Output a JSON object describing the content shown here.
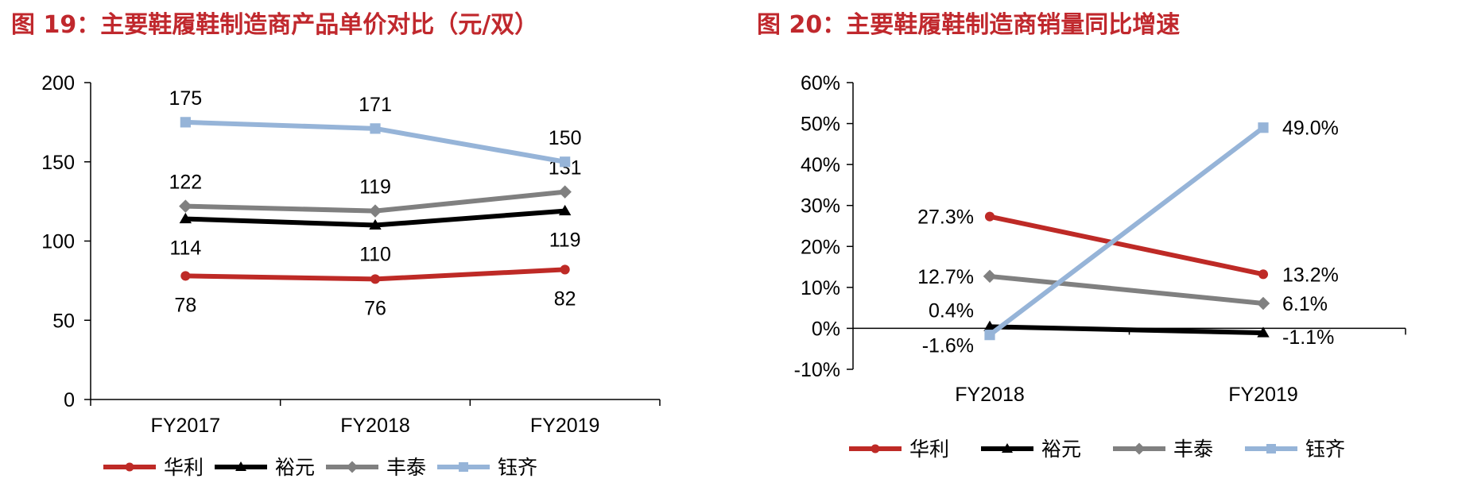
{
  "left_panel": {
    "title": "图 19：主要鞋履鞋制造商产品单价对比（元/双）"
  },
  "right_panel": {
    "title": "图 20：主要鞋履鞋制造商销量同比增速"
  },
  "chart_data": [
    {
      "type": "line",
      "categories": [
        "FY2017",
        "FY2018",
        "FY2019"
      ],
      "ylim": [
        0,
        200
      ],
      "yticks": [
        0,
        50,
        100,
        150,
        200
      ],
      "ytick_labels": [
        "0",
        "50",
        "100",
        "150",
        "200"
      ],
      "legend_position": "bottom",
      "grid": false,
      "series": [
        {
          "name": "华利",
          "values": [
            78,
            76,
            82
          ],
          "labels": [
            "78",
            "76",
            "82"
          ],
          "color": "#be2a26",
          "marker": "circle",
          "label_side": "below"
        },
        {
          "name": "裕元",
          "values": [
            114,
            110,
            119
          ],
          "labels": [
            "114",
            "110",
            "119"
          ],
          "color": "#000000",
          "marker": "triangle",
          "label_side": "below"
        },
        {
          "name": "丰泰",
          "values": [
            122,
            119,
            131
          ],
          "labels": [
            "122",
            "119",
            "131"
          ],
          "color": "#808080",
          "marker": "diamond",
          "label_side": "above"
        },
        {
          "name": "钰齐",
          "values": [
            175,
            171,
            150
          ],
          "labels": [
            "175",
            "171",
            "150"
          ],
          "color": "#96b4d8",
          "marker": "square",
          "label_side": "above"
        }
      ]
    },
    {
      "type": "line",
      "categories": [
        "FY2018",
        "FY2019"
      ],
      "ylim": [
        -10,
        60
      ],
      "yticks": [
        -10,
        0,
        10,
        20,
        30,
        40,
        50,
        60
      ],
      "ytick_labels": [
        "-10%",
        "0%",
        "10%",
        "20%",
        "30%",
        "40%",
        "50%",
        "60%"
      ],
      "legend_position": "bottom",
      "grid": false,
      "series": [
        {
          "name": "华利",
          "values": [
            27.3,
            13.2
          ],
          "labels": [
            "27.3%",
            "13.2%"
          ],
          "color": "#be2a26",
          "marker": "circle"
        },
        {
          "name": "裕元",
          "values": [
            0.4,
            -1.1
          ],
          "labels": [
            "0.4%",
            "-1.1%"
          ],
          "color": "#000000",
          "marker": "triangle"
        },
        {
          "name": "丰泰",
          "values": [
            12.7,
            6.1
          ],
          "labels": [
            "12.7%",
            "6.1%"
          ],
          "color": "#808080",
          "marker": "diamond"
        },
        {
          "name": "钰齐",
          "values": [
            -1.6,
            49.0
          ],
          "labels": [
            "-1.6%",
            "49.0%"
          ],
          "color": "#96b4d8",
          "marker": "square"
        }
      ]
    }
  ]
}
